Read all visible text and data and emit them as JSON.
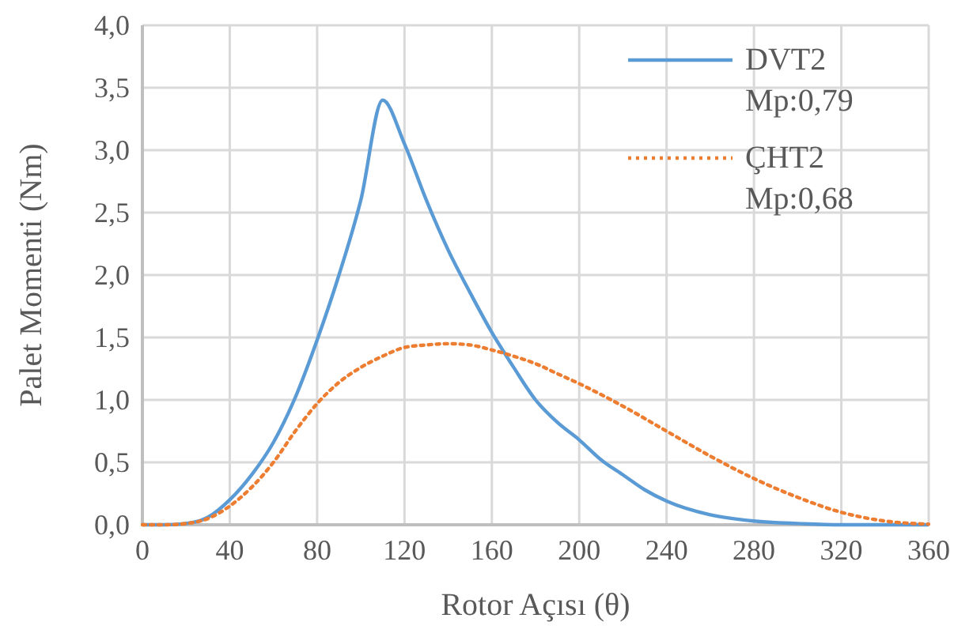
{
  "chart_data": {
    "type": "line",
    "xlabel": "Rotor Açısı (θ)",
    "ylabel": "Palet Momenti (Nm)",
    "xlim": [
      0,
      360
    ],
    "xticks": [
      0,
      40,
      80,
      120,
      160,
      200,
      240,
      280,
      320,
      360
    ],
    "ylim": [
      0,
      4
    ],
    "yticks": [
      {
        "value": 0,
        "label": "0,0"
      },
      {
        "value": 0.5,
        "label": "0,5"
      },
      {
        "value": 1,
        "label": "1,0"
      },
      {
        "value": 1.5,
        "label": "1,5"
      },
      {
        "value": 2,
        "label": "2,0"
      },
      {
        "value": 2.5,
        "label": "2,5"
      },
      {
        "value": 3,
        "label": "3,0"
      },
      {
        "value": 3.5,
        "label": "3,5"
      },
      {
        "value": 4,
        "label": "4,0"
      }
    ],
    "grid": true,
    "legend": "top right",
    "marker": "none",
    "series": [
      {
        "name": "DVT2\nMp:0,79",
        "color": "#5b9bd5",
        "line_style": "solid",
        "x": [
          0,
          10,
          20,
          30,
          40,
          50,
          60,
          70,
          80,
          90,
          100,
          110,
          120,
          130,
          140,
          150,
          160,
          170,
          180,
          190,
          200,
          210,
          220,
          230,
          240,
          260,
          280,
          300,
          320,
          360
        ],
        "values": [
          0,
          0,
          0.01,
          0.06,
          0.2,
          0.4,
          0.66,
          1.02,
          1.48,
          2.0,
          2.6,
          3.4,
          3.05,
          2.6,
          2.2,
          1.86,
          1.54,
          1.26,
          1.0,
          0.82,
          0.68,
          0.52,
          0.4,
          0.28,
          0.19,
          0.08,
          0.03,
          0.01,
          0,
          0
        ]
      },
      {
        "name": "ÇHT2\nMp:0,68",
        "color": "#ed7d31",
        "line_style": "dotted",
        "x": [
          0,
          10,
          20,
          30,
          40,
          50,
          60,
          70,
          80,
          90,
          100,
          110,
          120,
          130,
          140,
          150,
          160,
          170,
          180,
          190,
          200,
          220,
          240,
          260,
          280,
          300,
          320,
          340,
          360
        ],
        "values": [
          0,
          0,
          0.01,
          0.05,
          0.15,
          0.3,
          0.5,
          0.75,
          0.97,
          1.14,
          1.26,
          1.35,
          1.42,
          1.44,
          1.45,
          1.44,
          1.4,
          1.35,
          1.29,
          1.21,
          1.13,
          0.95,
          0.75,
          0.55,
          0.37,
          0.22,
          0.1,
          0.03,
          0.005
        ]
      }
    ]
  }
}
